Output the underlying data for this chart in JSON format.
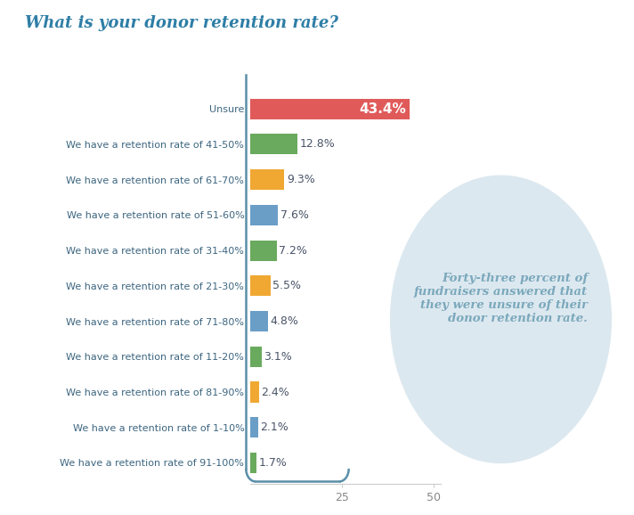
{
  "title": "What is your donor retention rate?",
  "categories": [
    "Unsure",
    "We have a retention rate of 41-50%",
    "We have a retention rate of 61-70%",
    "We have a retention rate of 51-60%",
    "We have a retention rate of 31-40%",
    "We have a retention rate of 21-30%",
    "We have a retention rate of 71-80%",
    "We have a retention rate of 11-20%",
    "We have a retention rate of 81-90%",
    "We have a retention rate of 1-10%",
    "We have a retention rate of 91-100%"
  ],
  "values": [
    43.4,
    12.8,
    9.3,
    7.6,
    7.2,
    5.5,
    4.8,
    3.1,
    2.4,
    2.1,
    1.7
  ],
  "labels": [
    "43.4%",
    "12.8%",
    "9.3%",
    "7.6%",
    "7.2%",
    "5.5%",
    "4.8%",
    "3.1%",
    "2.4%",
    "2.1%",
    "1.7%"
  ],
  "colors": [
    "#e05a5a",
    "#6aaa5e",
    "#f0a833",
    "#6b9ec7",
    "#6aaa5e",
    "#f0a833",
    "#6b9ec7",
    "#6aaa5e",
    "#f0a833",
    "#6b9ec7",
    "#6aaa5e"
  ],
  "label_text_colors": [
    "#ffffff",
    "#555555",
    "#555555",
    "#555555",
    "#555555",
    "#555555",
    "#555555",
    "#555555",
    "#555555",
    "#555555",
    "#555555"
  ],
  "label_inside": [
    true,
    false,
    false,
    false,
    false,
    false,
    false,
    false,
    false,
    false,
    false
  ],
  "background_color": "#ffffff",
  "title_color": "#2e7ea6",
  "bar_label_color": "#555555",
  "annotation_text": "Forty-three percent of\nfundraisers answered that\nthey were unsure of their\ndonor retention rate.",
  "annotation_color": "#7aa8bc",
  "annotation_bg": "#dce8ef",
  "bracket_color": "#5a8fa8",
  "xlim": [
    0,
    52
  ],
  "xticks": [
    25,
    50
  ]
}
